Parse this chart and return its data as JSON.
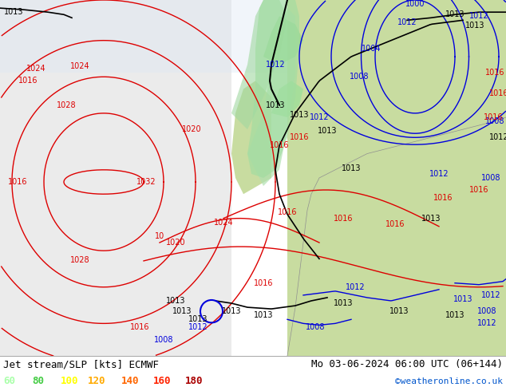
{
  "title_left": "Jet stream/SLP [kts] ECMWF",
  "title_right": "Mo 03-06-2024 06:00 UTC (06+144)",
  "credit": "©weatheronline.co.uk",
  "legend_values": [
    60,
    80,
    100,
    120,
    140,
    160,
    180
  ],
  "legend_colors": [
    "#aaffaa",
    "#44cc44",
    "#ffff00",
    "#ffaa00",
    "#ff6600",
    "#ff2200",
    "#aa0000"
  ],
  "bottom_bar_color": "#e8e8e8",
  "figsize": [
    6.34,
    4.9
  ],
  "dpi": 100,
  "bottom_text_color": "#000000",
  "credit_color": "#0055cc",
  "map_ocean_color": "#dce8f0",
  "map_land_color": "#c8dca0",
  "map_bg_left": "#e8e8e8",
  "jet_green_color": "#90e890",
  "isobar_red": "#dd0000",
  "isobar_blue": "#0000dd",
  "isobar_black": "#000000"
}
